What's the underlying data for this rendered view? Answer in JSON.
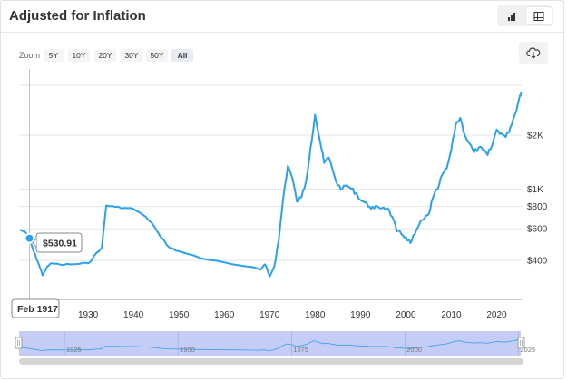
{
  "header": {
    "title": "Adjusted for Inflation",
    "chart_view_icon": "bar-chart-icon",
    "table_view_icon": "table-icon"
  },
  "zoom": {
    "label": "Zoom",
    "options": [
      "5Y",
      "10Y",
      "20Y",
      "30Y",
      "50Y",
      "All"
    ],
    "selected": "All"
  },
  "download_icon": "cloud-download-icon",
  "tooltip": {
    "value": "$530.91",
    "date": "Feb 1917"
  },
  "colors": {
    "line": "#2aa1ee",
    "nav_fill": "#c5cdf7",
    "accent": "#2aa1ee"
  },
  "chart_data": {
    "type": "line",
    "title": "Adjusted for Inflation",
    "xlabel": "",
    "ylabel": "",
    "x_ticks": [
      "1930",
      "1940",
      "1950",
      "1960",
      "1970",
      "1980",
      "1990",
      "2000",
      "2010",
      "2020"
    ],
    "y_ticks": [
      "$400",
      "$600",
      "$800",
      "$1K",
      "$2K"
    ],
    "y_scale": "log",
    "xlim": [
      1915,
      2025.5
    ],
    "series": [
      {
        "values": [
          [
            1915.0,
            590
          ],
          [
            1916.0,
            580
          ],
          [
            1917.1,
            531
          ],
          [
            1918.0,
            450
          ],
          [
            1919.0,
            390
          ],
          [
            1920.0,
            330
          ],
          [
            1921.0,
            370
          ],
          [
            1922.0,
            385
          ],
          [
            1924.0,
            378
          ],
          [
            1926.0,
            380
          ],
          [
            1928.0,
            382
          ],
          [
            1930.0,
            385
          ],
          [
            1931.0,
            410
          ],
          [
            1932.0,
            445
          ],
          [
            1933.0,
            465
          ],
          [
            1934.0,
            810
          ],
          [
            1936.0,
            795
          ],
          [
            1938.0,
            785
          ],
          [
            1940.0,
            775
          ],
          [
            1942.0,
            720
          ],
          [
            1944.0,
            650
          ],
          [
            1946.0,
            540
          ],
          [
            1948.0,
            470
          ],
          [
            1950.0,
            450
          ],
          [
            1955.0,
            410
          ],
          [
            1960.0,
            390
          ],
          [
            1965.0,
            370
          ],
          [
            1968.0,
            355
          ],
          [
            1969.0,
            380
          ],
          [
            1970.0,
            325
          ],
          [
            1971.0,
            370
          ],
          [
            1972.0,
            520
          ],
          [
            1973.0,
            900
          ],
          [
            1974.0,
            1350
          ],
          [
            1975.0,
            1150
          ],
          [
            1976.0,
            850
          ],
          [
            1977.0,
            900
          ],
          [
            1978.0,
            1100
          ],
          [
            1979.0,
            1700
          ],
          [
            1980.0,
            2600
          ],
          [
            1981.0,
            1900
          ],
          [
            1982.0,
            1400
          ],
          [
            1983.0,
            1500
          ],
          [
            1984.0,
            1250
          ],
          [
            1985.0,
            1050
          ],
          [
            1986.0,
            1000
          ],
          [
            1987.0,
            1050
          ],
          [
            1988.0,
            1000
          ],
          [
            1989.0,
            950
          ],
          [
            1990.0,
            870
          ],
          [
            1991.0,
            840
          ],
          [
            1992.0,
            800
          ],
          [
            1993.0,
            780
          ],
          [
            1994.0,
            790
          ],
          [
            1995.0,
            790
          ],
          [
            1996.0,
            780
          ],
          [
            1997.0,
            700
          ],
          [
            1998.0,
            580
          ],
          [
            1999.0,
            560
          ],
          [
            2000.0,
            540
          ],
          [
            2001.0,
            500
          ],
          [
            2002.0,
            560
          ],
          [
            2003.0,
            640
          ],
          [
            2004.0,
            680
          ],
          [
            2005.0,
            720
          ],
          [
            2006.0,
            900
          ],
          [
            2007.0,
            1000
          ],
          [
            2008.0,
            1200
          ],
          [
            2009.0,
            1300
          ],
          [
            2010.0,
            1650
          ],
          [
            2011.0,
            2300
          ],
          [
            2012.0,
            2500
          ],
          [
            2013.0,
            2000
          ],
          [
            2014.0,
            1800
          ],
          [
            2015.0,
            1600
          ],
          [
            2016.0,
            1700
          ],
          [
            2017.0,
            1650
          ],
          [
            2018.0,
            1550
          ],
          [
            2019.0,
            1750
          ],
          [
            2020.0,
            2150
          ],
          [
            2021.0,
            2050
          ],
          [
            2022.0,
            1950
          ],
          [
            2023.0,
            2200
          ],
          [
            2024.0,
            2600
          ],
          [
            2025.0,
            3250
          ],
          [
            2025.4,
            3500
          ]
        ]
      }
    ],
    "navigator": {
      "ticks": [
        "1925",
        "1950",
        "1975",
        "2000",
        "2025"
      ]
    }
  }
}
